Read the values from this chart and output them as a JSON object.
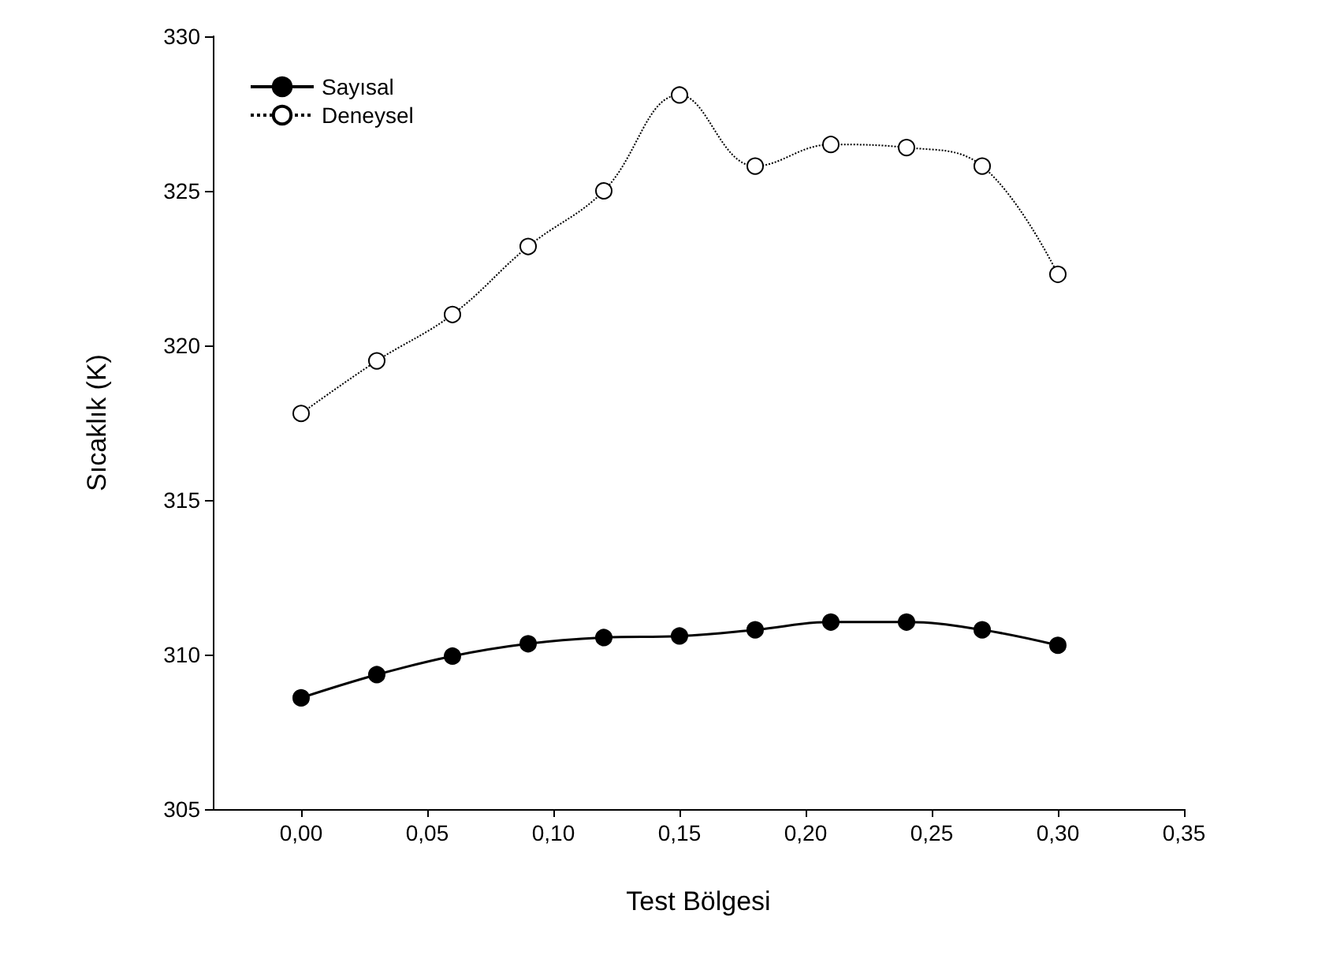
{
  "chart_data": {
    "type": "line",
    "xlabel": "Test Bölgesi",
    "ylabel": "Sıcaklık (K)",
    "x": [
      0,
      0.03,
      0.06,
      0.09,
      0.12,
      0.15,
      0.18,
      0.21,
      0.24,
      0.27,
      0.3
    ],
    "series": [
      {
        "name": "Sayısal",
        "color": "#000000",
        "marker": "circle",
        "line_style": "solid",
        "values": [
          308.6,
          309.35,
          309.95,
          310.35,
          310.55,
          310.6,
          310.8,
          311.05,
          311.05,
          310.8,
          310.3
        ]
      },
      {
        "name": "Deneysel",
        "color": "#000000",
        "marker": "circle",
        "line_style": "dotted",
        "values": [
          317.8,
          319.5,
          321.0,
          323.2,
          325.0,
          328.1,
          325.8,
          326.5,
          326.4,
          325.8,
          322.3
        ]
      }
    ],
    "xlim": [
      -0.035,
      0.35
    ],
    "xticks": [
      {
        "value": 0,
        "label": "0,00"
      },
      {
        "value": 0.05,
        "label": "0,05"
      },
      {
        "value": 0.1,
        "label": "0,10"
      },
      {
        "value": 0.15,
        "label": "0,15"
      },
      {
        "value": 0.2,
        "label": "0,20"
      },
      {
        "value": 0.25,
        "label": "0,25"
      },
      {
        "value": 0.3,
        "label": "0,30"
      },
      {
        "value": 0.35,
        "label": "0,35"
      }
    ],
    "ylim": [
      305,
      330
    ],
    "yticks": [
      305,
      310,
      315,
      320,
      325,
      330
    ],
    "grid": false,
    "legend": "top left"
  }
}
